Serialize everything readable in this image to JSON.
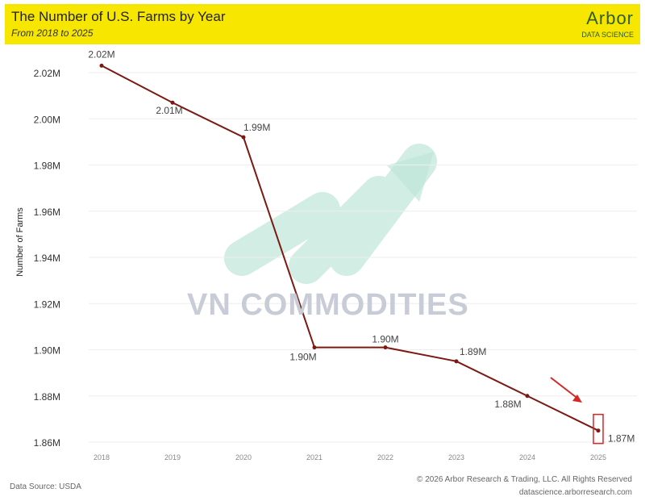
{
  "header": {
    "title": "The Number of U.S. Farms by Year",
    "subtitle": "From 2018 to 2025",
    "logo_word": "Arbor",
    "logo_sub": "DATA SCIENCE"
  },
  "watermark": "VN COMMODITIES",
  "footer": {
    "source": "Data Source: USDA",
    "copyright": "© 2026 Arbor Research & Trading, LLC. All Rights Reserved",
    "url": "datascience.arborresearch.com"
  },
  "colors": {
    "banner": "#f7e600",
    "line": "#7a1a12",
    "highlight": "#d62728"
  },
  "chart_data": {
    "type": "line",
    "title": "The Number of U.S. Farms by Year",
    "subtitle": "From 2018 to 2025",
    "xlabel": "",
    "ylabel": "Number of Farms",
    "categories": [
      "2018",
      "2019",
      "2020",
      "2021",
      "2022",
      "2023",
      "2024",
      "2025"
    ],
    "values": [
      2.023,
      2.007,
      1.992,
      1.901,
      1.901,
      1.895,
      1.88,
      1.865
    ],
    "data_labels": [
      "2.02M",
      "2.01M",
      "1.99M",
      "1.90M",
      "1.90M",
      "1.89M",
      "1.88M",
      "1.87M"
    ],
    "ylim": [
      1.86,
      2.025
    ],
    "yticks": [
      1.86,
      1.88,
      1.9,
      1.92,
      1.94,
      1.96,
      1.98,
      2.0,
      2.02
    ],
    "ytick_labels": [
      "1.86M",
      "1.88M",
      "1.90M",
      "1.92M",
      "1.94M",
      "1.96M",
      "1.98M",
      "2.00M",
      "2.02M"
    ],
    "grid": true,
    "highlight": "2025"
  }
}
